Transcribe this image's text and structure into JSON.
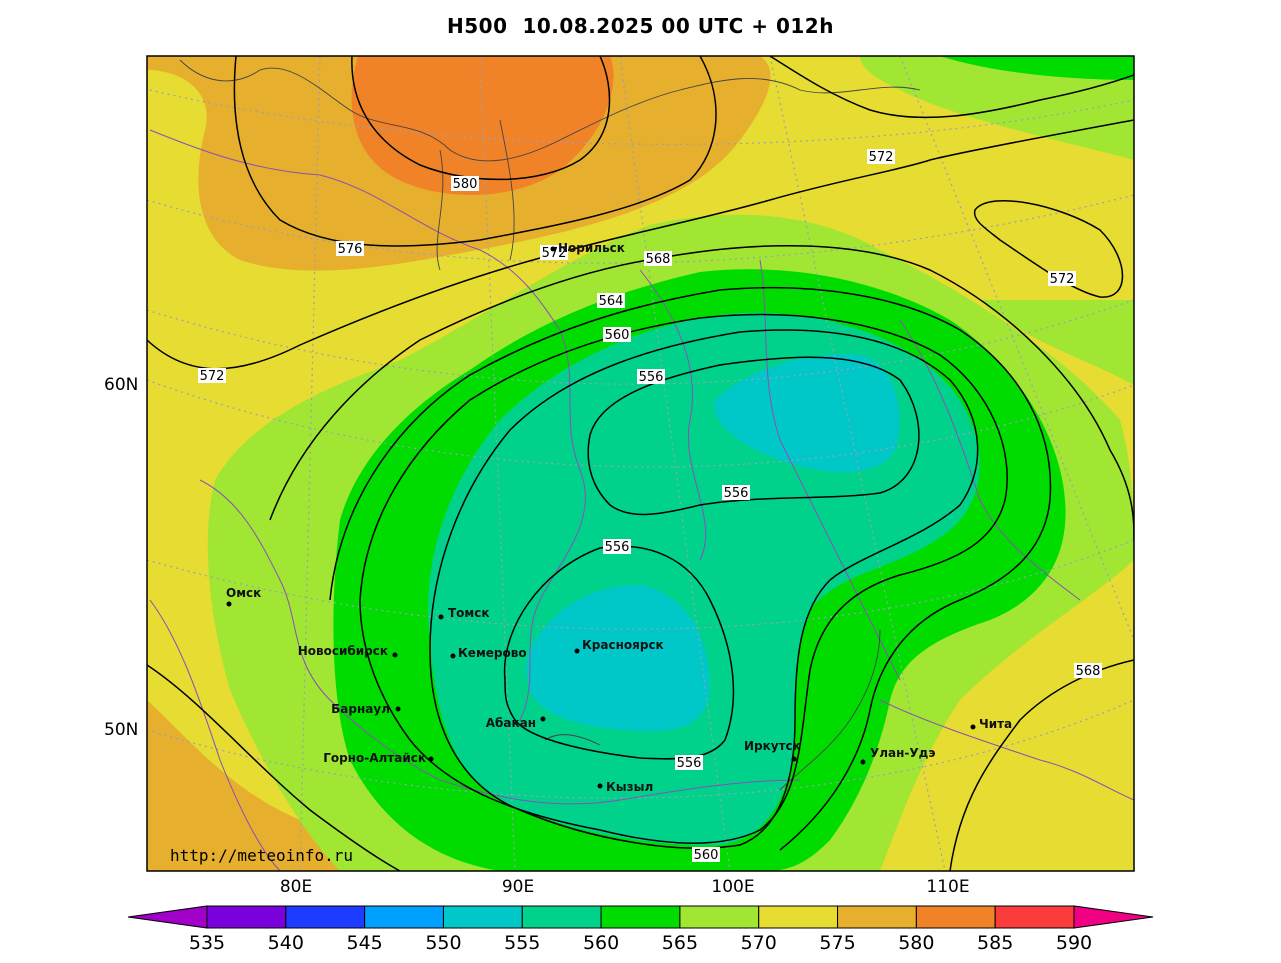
{
  "header": {
    "title": "H500  10.08.2025 00 UTC + 012h"
  },
  "map": {
    "source_url": "http://meteoinfo.ru",
    "lat_labels": [
      "60N",
      "50N"
    ],
    "lon_labels": [
      "80E",
      "90E",
      "100E",
      "110E"
    ],
    "cities": [
      {
        "name": "Норильск"
      },
      {
        "name": "Омск"
      },
      {
        "name": "Томск"
      },
      {
        "name": "Новосибирск"
      },
      {
        "name": "Кемерово"
      },
      {
        "name": "Красноярск"
      },
      {
        "name": "Барнаул"
      },
      {
        "name": "Абакан"
      },
      {
        "name": "Горно-Алтайск"
      },
      {
        "name": "Кызыл"
      },
      {
        "name": "Иркутск"
      },
      {
        "name": "Улан-Удэ"
      },
      {
        "name": "Чита"
      }
    ],
    "isoline_labels": [
      "580",
      "576",
      "572",
      "572",
      "568",
      "564",
      "560",
      "556",
      "556",
      "556",
      "556",
      "572",
      "572",
      "568",
      "560"
    ]
  },
  "colorbar": {
    "ticks": [
      "535",
      "540",
      "545",
      "550",
      "555",
      "560",
      "565",
      "570",
      "575",
      "580",
      "585",
      "590"
    ],
    "colors": [
      "#a000c8",
      "#7a00dc",
      "#1e3cff",
      "#00a0ff",
      "#00c8c8",
      "#00d28c",
      "#00dc00",
      "#a0e632",
      "#e6dc32",
      "#e6af2d",
      "#f08228",
      "#fa3c3c",
      "#f00082"
    ]
  }
}
